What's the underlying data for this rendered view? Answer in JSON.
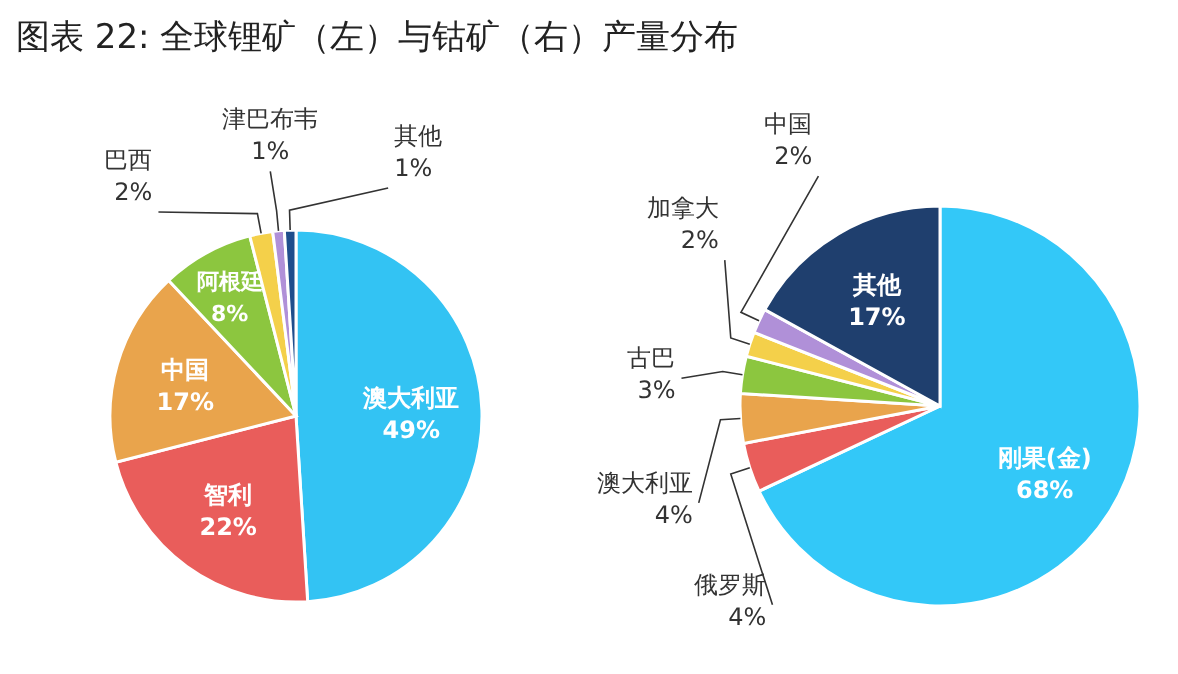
{
  "chart_data": [
    {
      "type": "pie",
      "title": "图表 22: 全球锂矿（左）与钴矿（右）产量分布",
      "categories": [
        "澳大利亚",
        "智利",
        "中国",
        "阿根廷",
        "巴西",
        "津巴布韦",
        "其他"
      ],
      "values": [
        49,
        22,
        17,
        8,
        2,
        1,
        1
      ],
      "value_labels": [
        "49%",
        "22%",
        "17%",
        "8%",
        "2%",
        "1%",
        "1%"
      ],
      "colors": [
        "#33c3f3",
        "#e95d5b",
        "#e9a44c",
        "#8cc63f",
        "#f4d04a",
        "#b090d8",
        "#1f4e8c"
      ]
    },
    {
      "type": "pie",
      "categories": [
        "刚果(金)",
        "俄罗斯",
        "澳大利亚",
        "古巴",
        "加拿大",
        "中国",
        "其他"
      ],
      "values": [
        68,
        4,
        4,
        3,
        2,
        2,
        17
      ],
      "value_labels": [
        "68%",
        "4%",
        "4%",
        "3%",
        "2%",
        "2%",
        "17%"
      ],
      "colors": [
        "#33c8f8",
        "#e95d5b",
        "#e9a44c",
        "#8cc63f",
        "#f4d04a",
        "#b090d8",
        "#1f3f6e"
      ]
    }
  ]
}
